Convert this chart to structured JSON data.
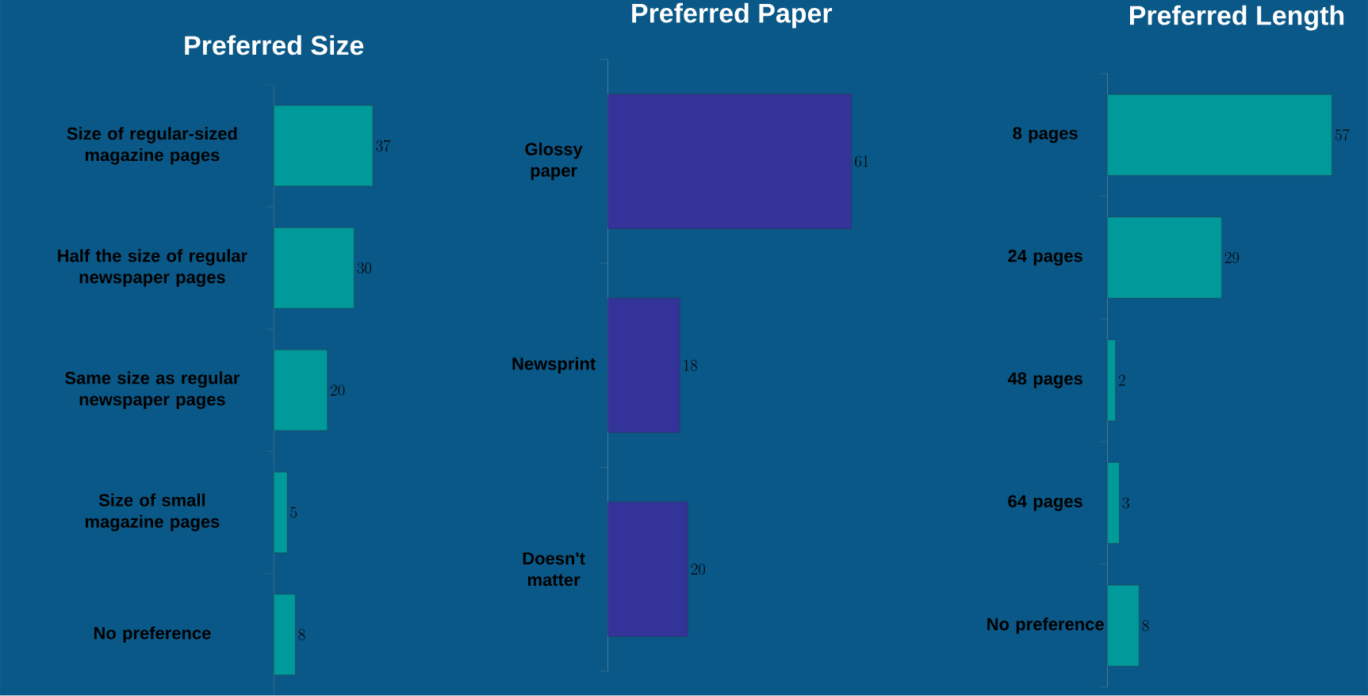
{
  "chart_data": [
    {
      "type": "bar",
      "orientation": "horizontal",
      "title": "Preferred Size",
      "categories": [
        "Size of regular-sized magazine pages",
        "Half the size of regular newspaper pages",
        "Same size as regular newspaper pages",
        "Size of small magazine pages",
        "No preference"
      ],
      "values": [
        37,
        30,
        20,
        5,
        8
      ],
      "color": "#009a9a",
      "data_labels": true
    },
    {
      "type": "bar",
      "orientation": "horizontal",
      "title": "Preferred Paper",
      "categories": [
        "Glossy paper",
        "Newsprint",
        "Doesn't matter"
      ],
      "values": [
        61,
        18,
        20
      ],
      "color": "#333399",
      "data_labels": true
    },
    {
      "type": "bar",
      "orientation": "horizontal",
      "title": "Preferred Length",
      "categories": [
        "8 pages",
        "24 pages",
        "48 pages",
        "64 pages",
        "No preference"
      ],
      "values": [
        57,
        29,
        2,
        3,
        8
      ],
      "color": "#009a9a",
      "data_labels": true
    }
  ]
}
